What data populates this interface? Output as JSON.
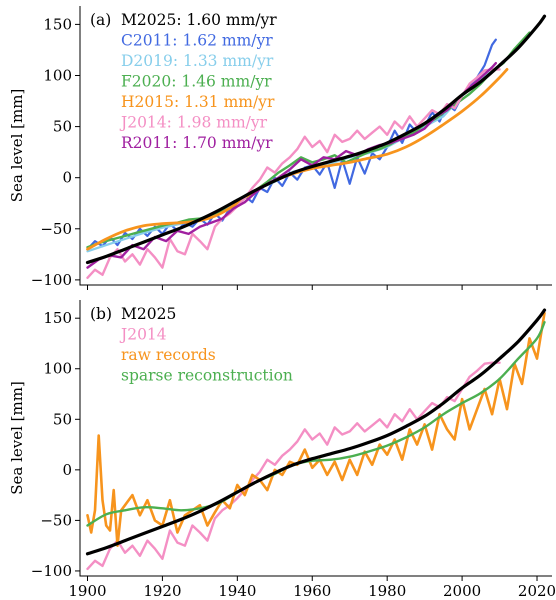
{
  "chart_data": [
    {
      "type": "line",
      "panel_label": "(a)",
      "ylabel": "Sea level [mm]",
      "xlabel": "",
      "xlim": [
        1898,
        2024
      ],
      "ylim": [
        -105,
        168
      ],
      "xticks": [
        "1900",
        "1920",
        "1940",
        "1960",
        "1980",
        "2000",
        "2020"
      ],
      "yticks": [
        "−100",
        "−50",
        "0",
        "50",
        "100",
        "150"
      ],
      "ytick_values": [
        -100,
        -50,
        0,
        50,
        100,
        150
      ],
      "show_xtick_labels": false,
      "grid": false,
      "legend_placement": "top-left",
      "series": [
        {
          "name": "M2025",
          "rate": "1.60 mm/yr",
          "color": "#000000",
          "width": 3.2,
          "smooth": true,
          "x": [
            1900,
            1905,
            1910,
            1915,
            1920,
            1925,
            1930,
            1935,
            1940,
            1945,
            1950,
            1955,
            1960,
            1965,
            1970,
            1975,
            1980,
            1985,
            1990,
            1995,
            2000,
            2005,
            2010,
            2015,
            2020,
            2022
          ],
          "y": [
            -83,
            -77,
            -70,
            -63,
            -56,
            -49,
            -41,
            -32,
            -22,
            -12,
            -3,
            5,
            11,
            16,
            21,
            27,
            34,
            43,
            53,
            66,
            81,
            94,
            110,
            127,
            148,
            158
          ]
        },
        {
          "name": "C2011",
          "rate": "1.62 mm/yr",
          "color": "#4169e1",
          "width": 2.2,
          "smooth": false,
          "x": [
            1900,
            1902,
            1904,
            1906,
            1908,
            1910,
            1912,
            1914,
            1916,
            1918,
            1920,
            1922,
            1924,
            1926,
            1928,
            1930,
            1932,
            1934,
            1936,
            1938,
            1940,
            1942,
            1944,
            1946,
            1948,
            1950,
            1952,
            1954,
            1956,
            1958,
            1960,
            1962,
            1964,
            1966,
            1968,
            1970,
            1972,
            1974,
            1976,
            1978,
            1980,
            1982,
            1984,
            1986,
            1988,
            1990,
            1992,
            1994,
            1996,
            1998,
            2000,
            2002,
            2004,
            2006,
            2008,
            2009
          ],
          "y": [
            -70,
            -62,
            -67,
            -58,
            -66,
            -54,
            -60,
            -50,
            -57,
            -48,
            -55,
            -45,
            -52,
            -44,
            -48,
            -40,
            -46,
            -35,
            -42,
            -30,
            -28,
            -18,
            -24,
            -10,
            -14,
            0,
            -8,
            5,
            -2,
            10,
            12,
            3,
            15,
            -10,
            18,
            -6,
            20,
            4,
            24,
            18,
            30,
            46,
            34,
            52,
            44,
            50,
            64,
            55,
            72,
            66,
            80,
            90,
            98,
            110,
            130,
            135
          ]
        },
        {
          "name": "D2019",
          "rate": "1.33 mm/yr",
          "color": "#87ceeb",
          "width": 2.2,
          "smooth": false,
          "x": [
            1900,
            1905,
            1910,
            1915,
            1920,
            1925,
            1930,
            1935,
            1940,
            1945,
            1950,
            1955,
            1960,
            1965,
            1970,
            1975,
            1980,
            1985,
            1990,
            1995,
            2000,
            2005,
            2010
          ],
          "y": [
            -72,
            -66,
            -60,
            -54,
            -49,
            -45,
            -40,
            -34,
            -24,
            -12,
            -4,
            6,
            11,
            14,
            20,
            24,
            30,
            40,
            50,
            60,
            80,
            96,
            110
          ]
        },
        {
          "name": "F2020",
          "rate": "1.46 mm/yr",
          "color": "#4caf50",
          "width": 2.4,
          "smooth": false,
          "x": [
            1900,
            1903,
            1906,
            1909,
            1912,
            1915,
            1918,
            1921,
            1924,
            1927,
            1930,
            1933,
            1936,
            1939,
            1942,
            1945,
            1948,
            1951,
            1954,
            1957,
            1960,
            1963,
            1966,
            1969,
            1972,
            1975,
            1978,
            1981,
            1984,
            1987,
            1990,
            1993,
            1996,
            1999,
            2002,
            2005,
            2008,
            2011,
            2014,
            2018
          ],
          "y": [
            -68,
            -64,
            -61,
            -58,
            -55,
            -52,
            -49,
            -46,
            -44,
            -41,
            -40,
            -37,
            -33,
            -28,
            -20,
            -12,
            -4,
            5,
            12,
            20,
            15,
            18,
            22,
            15,
            20,
            25,
            28,
            33,
            40,
            44,
            52,
            58,
            66,
            74,
            82,
            92,
            104,
            112,
            126,
            142
          ]
        },
        {
          "name": "H2015",
          "rate": "1.31 mm/yr",
          "color": "#f7941d",
          "width": 2.8,
          "smooth": true,
          "x": [
            1900,
            1905,
            1910,
            1915,
            1920,
            1925,
            1930,
            1935,
            1940,
            1945,
            1950,
            1955,
            1960,
            1965,
            1970,
            1975,
            1980,
            1985,
            1990,
            1995,
            2000,
            2005,
            2010,
            2012
          ],
          "y": [
            -70,
            -60,
            -52,
            -47,
            -45,
            -44,
            -42,
            -36,
            -25,
            -12,
            -3,
            4,
            9,
            12,
            15,
            19,
            23,
            30,
            40,
            52,
            65,
            80,
            98,
            106
          ]
        },
        {
          "name": "J2014",
          "rate": "1.98 mm/yr",
          "color": "#f48fc4",
          "width": 2.4,
          "smooth": false,
          "x": [
            1900,
            1902,
            1904,
            1906,
            1908,
            1910,
            1912,
            1914,
            1916,
            1918,
            1920,
            1922,
            1924,
            1926,
            1928,
            1930,
            1932,
            1934,
            1936,
            1938,
            1940,
            1942,
            1944,
            1946,
            1948,
            1950,
            1952,
            1954,
            1956,
            1958,
            1960,
            1962,
            1964,
            1966,
            1968,
            1970,
            1972,
            1974,
            1976,
            1978,
            1980,
            1982,
            1984,
            1986,
            1988,
            1990,
            1992,
            1994,
            1996,
            1998,
            2000,
            2002,
            2004,
            2006,
            2008,
            2010
          ],
          "y": [
            -98,
            -90,
            -95,
            -78,
            -70,
            -82,
            -75,
            -85,
            -70,
            -78,
            -88,
            -60,
            -72,
            -75,
            -55,
            -62,
            -70,
            -48,
            -40,
            -35,
            -28,
            -20,
            -10,
            -2,
            10,
            5,
            14,
            20,
            28,
            40,
            30,
            36,
            25,
            42,
            35,
            38,
            46,
            38,
            44,
            50,
            42,
            55,
            48,
            60,
            50,
            58,
            66,
            62,
            72,
            68,
            80,
            92,
            98,
            105,
            106,
            106
          ]
        },
        {
          "name": "R2011",
          "rate": "1.70 mm/yr",
          "color": "#a020a0",
          "width": 2.4,
          "smooth": false,
          "x": [
            1900,
            1903,
            1906,
            1909,
            1912,
            1915,
            1918,
            1921,
            1924,
            1927,
            1930,
            1933,
            1936,
            1939,
            1942,
            1945,
            1948,
            1951,
            1954,
            1957,
            1960,
            1963,
            1966,
            1969,
            1972,
            1975,
            1978,
            1981,
            1984,
            1987,
            1990,
            1993,
            1996,
            1999,
            2002,
            2005,
            2008,
            2009
          ],
          "y": [
            -88,
            -80,
            -76,
            -78,
            -66,
            -70,
            -58,
            -62,
            -52,
            -55,
            -48,
            -44,
            -40,
            -30,
            -24,
            -14,
            -6,
            0,
            8,
            18,
            12,
            20,
            18,
            26,
            22,
            28,
            32,
            34,
            38,
            42,
            48,
            60,
            66,
            78,
            88,
            98,
            108,
            112
          ]
        }
      ]
    },
    {
      "type": "line",
      "panel_label": "(b)",
      "ylabel": "Sea level [mm]",
      "xlabel": "",
      "xlim": [
        1898,
        2024
      ],
      "ylim": [
        -105,
        168
      ],
      "xticks": [
        "1900",
        "1920",
        "1940",
        "1960",
        "1980",
        "2000",
        "2020"
      ],
      "xtick_values": [
        1900,
        1920,
        1940,
        1960,
        1980,
        2000,
        2020
      ],
      "yticks": [
        "−100",
        "−50",
        "0",
        "50",
        "100",
        "150"
      ],
      "ytick_values": [
        -100,
        -50,
        0,
        50,
        100,
        150
      ],
      "show_xtick_labels": true,
      "grid": false,
      "legend_placement": "top-left",
      "series": [
        {
          "name": "M2025",
          "color": "#000000",
          "width": 3.2,
          "smooth": true,
          "x": [
            1900,
            1905,
            1910,
            1915,
            1920,
            1925,
            1930,
            1935,
            1940,
            1945,
            1950,
            1955,
            1960,
            1965,
            1970,
            1975,
            1980,
            1985,
            1990,
            1995,
            2000,
            2005,
            2010,
            2015,
            2020,
            2022
          ],
          "y": [
            -83,
            -77,
            -70,
            -63,
            -56,
            -49,
            -41,
            -32,
            -22,
            -12,
            -3,
            5,
            11,
            16,
            21,
            27,
            34,
            43,
            53,
            66,
            81,
            94,
            110,
            127,
            148,
            158
          ]
        },
        {
          "name": "J2014",
          "color": "#f48fc4",
          "width": 2.4,
          "smooth": false,
          "x": [
            1900,
            1902,
            1904,
            1906,
            1908,
            1910,
            1912,
            1914,
            1916,
            1918,
            1920,
            1922,
            1924,
            1926,
            1928,
            1930,
            1932,
            1934,
            1936,
            1938,
            1940,
            1942,
            1944,
            1946,
            1948,
            1950,
            1952,
            1954,
            1956,
            1958,
            1960,
            1962,
            1964,
            1966,
            1968,
            1970,
            1972,
            1974,
            1976,
            1978,
            1980,
            1982,
            1984,
            1986,
            1988,
            1990,
            1992,
            1994,
            1996,
            1998,
            2000,
            2002,
            2004,
            2006,
            2008,
            2010
          ],
          "y": [
            -98,
            -90,
            -95,
            -78,
            -70,
            -82,
            -75,
            -85,
            -70,
            -78,
            -88,
            -60,
            -72,
            -75,
            -55,
            -62,
            -70,
            -48,
            -40,
            -35,
            -28,
            -20,
            -10,
            -2,
            10,
            5,
            14,
            20,
            28,
            40,
            30,
            36,
            25,
            42,
            35,
            38,
            46,
            38,
            44,
            50,
            42,
            55,
            48,
            60,
            50,
            58,
            66,
            62,
            72,
            68,
            80,
            92,
            98,
            105,
            106,
            106
          ]
        },
        {
          "name": "raw records",
          "color": "#f7941d",
          "width": 2.6,
          "smooth": false,
          "x": [
            1900,
            1901,
            1902,
            1903,
            1904,
            1905,
            1906,
            1907,
            1908,
            1909,
            1910,
            1912,
            1914,
            1916,
            1918,
            1920,
            1922,
            1924,
            1926,
            1928,
            1930,
            1932,
            1934,
            1936,
            1938,
            1940,
            1942,
            1944,
            1946,
            1948,
            1950,
            1952,
            1954,
            1956,
            1958,
            1960,
            1962,
            1964,
            1966,
            1968,
            1970,
            1972,
            1974,
            1976,
            1978,
            1980,
            1982,
            1984,
            1986,
            1988,
            1990,
            1992,
            1994,
            1996,
            1998,
            2000,
            2002,
            2004,
            2006,
            2008,
            2010,
            2012,
            2014,
            2016,
            2018,
            2020,
            2022
          ],
          "y": [
            -45,
            -62,
            -40,
            34,
            -30,
            -55,
            -60,
            -20,
            -75,
            -40,
            -35,
            -25,
            -45,
            -30,
            -50,
            -55,
            -30,
            -62,
            -45,
            -40,
            -35,
            -55,
            -42,
            -30,
            -38,
            -15,
            -25,
            -5,
            -10,
            -20,
            0,
            -5,
            8,
            5,
            20,
            2,
            10,
            -5,
            8,
            -10,
            10,
            -5,
            18,
            5,
            25,
            15,
            30,
            10,
            40,
            25,
            45,
            20,
            55,
            40,
            30,
            70,
            40,
            60,
            80,
            55,
            90,
            60,
            105,
            85,
            130,
            110,
            155
          ]
        },
        {
          "name": "sparse reconstruction",
          "color": "#4caf50",
          "width": 2.4,
          "smooth": true,
          "x": [
            1900,
            1905,
            1910,
            1915,
            1920,
            1925,
            1930,
            1935,
            1940,
            1945,
            1950,
            1955,
            1960,
            1965,
            1970,
            1975,
            1980,
            1985,
            1990,
            1995,
            2000,
            2005,
            2010,
            2015,
            2020,
            2022
          ],
          "y": [
            -55,
            -44,
            -40,
            -37,
            -38,
            -40,
            -38,
            -33,
            -22,
            -12,
            -4,
            5,
            9,
            10,
            13,
            18,
            24,
            32,
            42,
            55,
            66,
            76,
            90,
            110,
            130,
            146
          ]
        }
      ]
    }
  ]
}
